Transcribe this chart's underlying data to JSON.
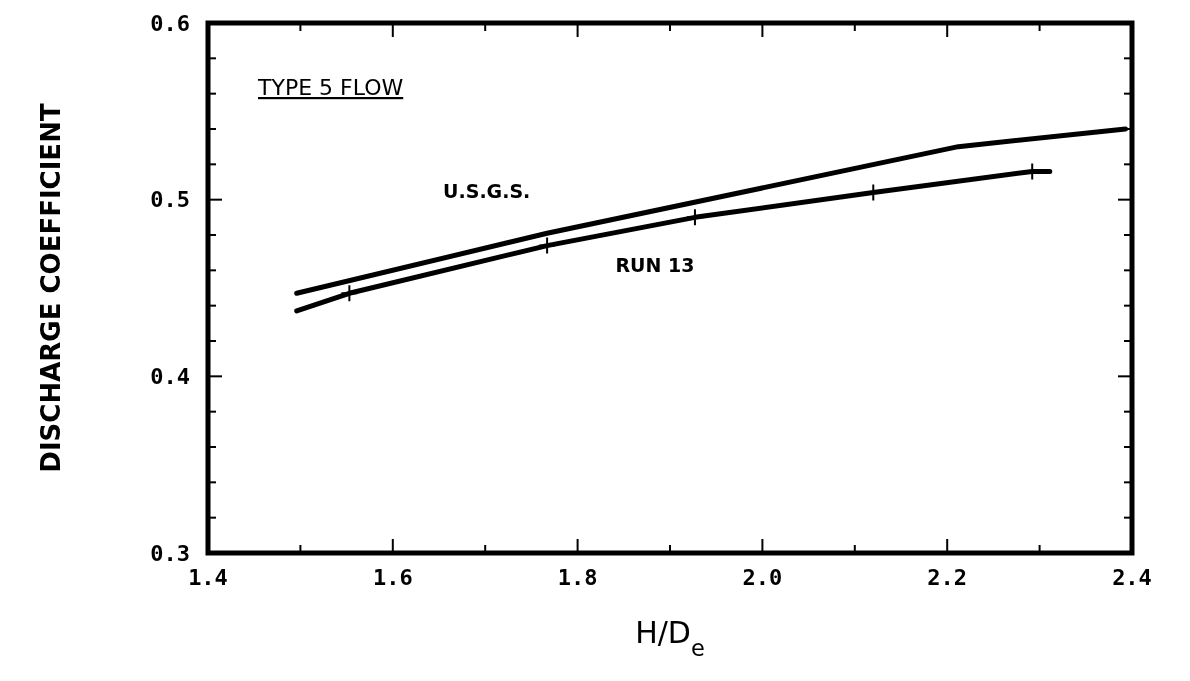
{
  "chart_data": {
    "type": "line",
    "title": "TYPE 5 FLOW",
    "xlabel": "H/D$_{e}$",
    "ylabel": "DISCHARGE COEFFICIENT",
    "xlim": [
      1.4,
      2.4
    ],
    "xticks": [
      1.4,
      {
        "value": 1.5,
        "label": null
      },
      1.6,
      {
        "value": 1.7,
        "label": null
      },
      1.8,
      {
        "value": 1.9,
        "label": null
      },
      "2.0",
      {
        "value": 2.1,
        "label": null
      },
      2.2,
      {
        "value": 2.3,
        "label": null
      },
      2.4
    ],
    "ylim": [
      0.3,
      0.6
    ],
    "yticks": [
      0.3,
      {
        "value": 0.32,
        "label": null
      },
      {
        "value": 0.34,
        "label": null
      },
      {
        "value": 0.36,
        "label": null
      },
      {
        "value": 0.38,
        "label": null
      },
      0.4,
      {
        "value": 0.42,
        "label": null
      },
      {
        "value": 0.44,
        "label": null
      },
      {
        "value": 0.46,
        "label": null
      },
      {
        "value": 0.48,
        "label": null
      },
      0.5,
      {
        "value": 0.52,
        "label": null
      },
      {
        "value": 0.54,
        "label": null
      },
      {
        "value": 0.56,
        "label": null
      },
      {
        "value": 0.58,
        "label": null
      },
      0.6
    ],
    "grid": false,
    "line_style": "solid",
    "series": [
      {
        "name": "U.S.G.S.",
        "color": "#000000",
        "marker": "none",
        "x": [
          1.496,
          1.767,
          2.212,
          2.393
        ],
        "values": [
          0.447,
          0.481,
          0.53,
          0.54
        ]
      },
      {
        "name": "RUN 13",
        "color": "#000000",
        "marker": "none",
        "x": [
          1.496,
          1.553,
          1.767,
          1.927,
          2.12,
          2.292,
          2.311
        ],
        "values": [
          0.437,
          0.447,
          0.474,
          0.49,
          0.504,
          0.516,
          0.516
        ]
      },
      {
        "type": "scatter",
        "color": "#000000",
        "marker": "cross",
        "x": [
          1.553,
          1.767,
          1.927,
          2.12,
          2.292
        ],
        "values": [
          0.447,
          0.474,
          0.49,
          0.504,
          0.516
        ]
      }
    ]
  }
}
